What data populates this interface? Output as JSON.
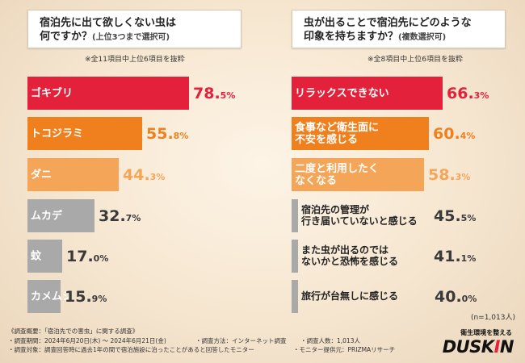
{
  "left": {
    "title_line1": "宿泊先に出て欲しくない虫は",
    "title_line2": "何ですか？",
    "title_sub": "(上位3つまで選択可)",
    "note": "※全11項目中上位6項目を抜粋"
  },
  "right": {
    "title_line1": "虫が出ることで宿泊先にどのような",
    "title_line2": "印象を持ちますか？",
    "title_sub": "(複数選択可)",
    "note": "※全8項目中上位6項目を抜粋",
    "n": "(n=1,013人)"
  },
  "chart_data": [
    {
      "type": "bar",
      "orientation": "horizontal",
      "title": "宿泊先に出て欲しくない虫は何ですか？(上位3つまで選択可)",
      "unit": "%",
      "categories": [
        "ゴキブリ",
        "トコジラミ",
        "ダニ",
        "ムカデ",
        "蚊",
        "カメムシ"
      ],
      "values": [
        78.5,
        55.8,
        44.3,
        32.7,
        17.0,
        15.9
      ],
      "value_big": [
        "78.",
        "55.",
        "44.",
        "32.",
        "17.",
        "15."
      ],
      "value_small": [
        "5%",
        "8%",
        "3%",
        "7%",
        "0%",
        "9%"
      ],
      "colors": [
        "#e3213b",
        "#f0801e",
        "#f5a557",
        "#a9a9a9",
        "#a9a9a9",
        "#a9a9a9"
      ]
    },
    {
      "type": "bar",
      "orientation": "horizontal",
      "title": "虫が出ることで宿泊先にどのような印象を持ちますか？(複数選択可)",
      "unit": "%",
      "categories": [
        "リラックスできない",
        "食事など衛生面に不安を感じる",
        "二度と利用したくなくなる",
        "宿泊先の管理が行き届いていないと感じる",
        "また虫が出るのではないかと恐怖を感じる",
        "旅行が台無しに感じる"
      ],
      "label_lines": [
        [
          "リラックスできない"
        ],
        [
          "食事など衛生面に",
          "不安を感じる"
        ],
        [
          "二度と利用したく",
          "なくなる"
        ],
        [
          "宿泊先の管理が",
          "行き届いていないと感じる"
        ],
        [
          "また虫が出るのでは",
          "ないかと恐怖を感じる"
        ],
        [
          "旅行が台無しに感じる"
        ]
      ],
      "values": [
        66.3,
        60.4,
        58.3,
        45.5,
        41.1,
        40.0
      ],
      "value_big": [
        "66.",
        "60.",
        "58.",
        "45.",
        "41.",
        "40."
      ],
      "value_small": [
        "3%",
        "4%",
        "3%",
        "5%",
        "1%",
        "0%"
      ],
      "colors": [
        "#e3213b",
        "#f0801e",
        "#f5a557",
        "#a9a9a9",
        "#a9a9a9",
        "#a9a9a9"
      ]
    }
  ],
  "footer": {
    "l1a": "《調査概要：「宿泊先での害虫」に関する調査》",
    "l2a": "・調査期間：2024年6月20日(木) ～ 2024年6月21日(金)",
    "l2b": "・調査方法：インターネット調査",
    "l2c": "・調査人数：1,013人",
    "l3a": "・調査対象：調査回答時に過去1年の間で宿泊施設に泊ったことがあると回答したモニター",
    "l3b": "・モニター提供元：PRIZMAリサーチ"
  },
  "logo": {
    "sub": "衛生環境を整える",
    "pre": "DUSK",
    "i": "I",
    "post": "N"
  }
}
